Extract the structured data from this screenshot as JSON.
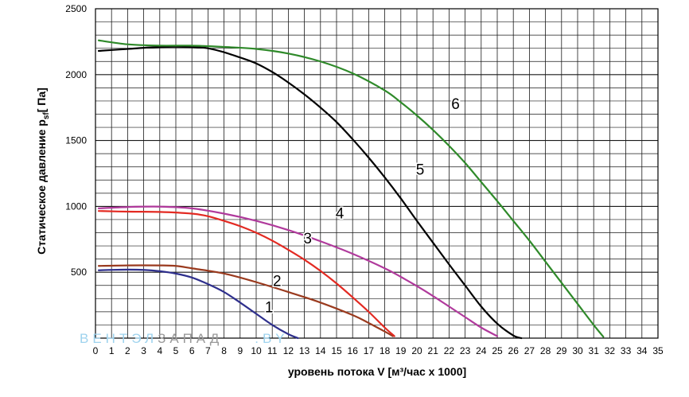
{
  "chart_data": {
    "type": "line",
    "title": "",
    "xlabel": "уровень потока  V [м³/час x 1000]",
    "ylabel_main": "Статическое давление  p",
    "ylabel_sub": "sf",
    "ylabel_unit": "[ Па]",
    "xlim": [
      0,
      35
    ],
    "ylim": [
      0,
      2500
    ],
    "x_ticks": [
      "0",
      "1",
      "2",
      "3",
      "4",
      "5",
      "6",
      "7",
      "8",
      "9",
      "10",
      "11",
      "12",
      "13",
      "14",
      "15",
      "16",
      "17",
      "18",
      "19",
      "20",
      "21",
      "22",
      "23",
      "24",
      "25",
      "26",
      "27",
      "28",
      "29",
      "30",
      "31",
      "32",
      "33",
      "34",
      "35"
    ],
    "y_ticks": [
      "500",
      "1000",
      "1500",
      "2000",
      "2500"
    ],
    "grid": true,
    "series": [
      {
        "name": "1",
        "color": "#2e2f8c",
        "x": [
          0.2,
          1,
          2,
          3,
          4,
          5,
          6,
          7,
          8,
          9,
          10,
          11,
          12,
          12.6
        ],
        "y": [
          515,
          518,
          520,
          518,
          508,
          490,
          460,
          410,
          350,
          270,
          185,
          100,
          30,
          0
        ]
      },
      {
        "name": "2",
        "color": "#9a3a1e",
        "x": [
          0.2,
          2,
          4,
          5,
          6,
          8,
          10,
          12,
          14,
          16,
          17,
          18,
          18.5
        ],
        "y": [
          548,
          552,
          552,
          548,
          530,
          490,
          425,
          350,
          270,
          175,
          115,
          50,
          15
        ]
      },
      {
        "name": "3",
        "color": "#e32a22",
        "x": [
          0.2,
          2,
          4,
          6,
          7,
          8,
          9,
          10,
          11,
          12,
          13,
          14,
          15,
          16,
          17,
          18,
          18.6
        ],
        "y": [
          965,
          960,
          958,
          945,
          925,
          890,
          850,
          800,
          740,
          670,
          595,
          510,
          415,
          310,
          200,
          80,
          15
        ]
      },
      {
        "name": "4",
        "color": "#b03a9c",
        "x": [
          0.2,
          2,
          4,
          6,
          8,
          10,
          12,
          14,
          16,
          18,
          19,
          20,
          21,
          22,
          23,
          24,
          25
        ],
        "y": [
          985,
          995,
          998,
          985,
          945,
          890,
          820,
          735,
          640,
          530,
          465,
          395,
          320,
          240,
          160,
          80,
          15
        ]
      },
      {
        "name": "5",
        "color": "#000000",
        "x": [
          0.2,
          2,
          4,
          6,
          7,
          8,
          9,
          10,
          11,
          12,
          13,
          14,
          15,
          16,
          17,
          18,
          19,
          20,
          21,
          22,
          23,
          24,
          25,
          26,
          26.5
        ],
        "y": [
          2180,
          2195,
          2210,
          2210,
          2200,
          2170,
          2130,
          2085,
          2020,
          1940,
          1850,
          1750,
          1640,
          1510,
          1370,
          1220,
          1060,
          890,
          725,
          560,
          400,
          240,
          110,
          20,
          0
        ]
      },
      {
        "name": "6",
        "color": "#2f8a2a",
        "x": [
          0.2,
          2,
          4,
          6,
          8,
          10,
          12,
          14,
          16,
          18,
          19,
          20,
          21,
          22,
          23,
          24,
          25,
          26,
          27,
          28,
          29,
          30,
          31,
          31.6
        ],
        "y": [
          2260,
          2230,
          2220,
          2220,
          2210,
          2195,
          2160,
          2100,
          2010,
          1880,
          1790,
          1690,
          1580,
          1460,
          1330,
          1185,
          1040,
          890,
          740,
          580,
          420,
          260,
          100,
          10
        ]
      }
    ],
    "curve_labels": [
      {
        "text": "1",
        "x": 10.8,
        "y": 195
      },
      {
        "text": "2",
        "x": 11.3,
        "y": 395
      },
      {
        "text": "3",
        "x": 13.2,
        "y": 720
      },
      {
        "text": "4",
        "x": 15.2,
        "y": 910
      },
      {
        "text": "5",
        "x": 20.2,
        "y": 1240
      },
      {
        "text": "6",
        "x": 22.4,
        "y": 1740
      }
    ]
  },
  "watermark": {
    "part1": "ВЕНТЭЛ",
    "part2": "ЗАПАД",
    "part3": ".BY",
    "color1": "#9fd3ee",
    "color2": "#9a9a9a",
    "color3": "#9fd3ee"
  }
}
